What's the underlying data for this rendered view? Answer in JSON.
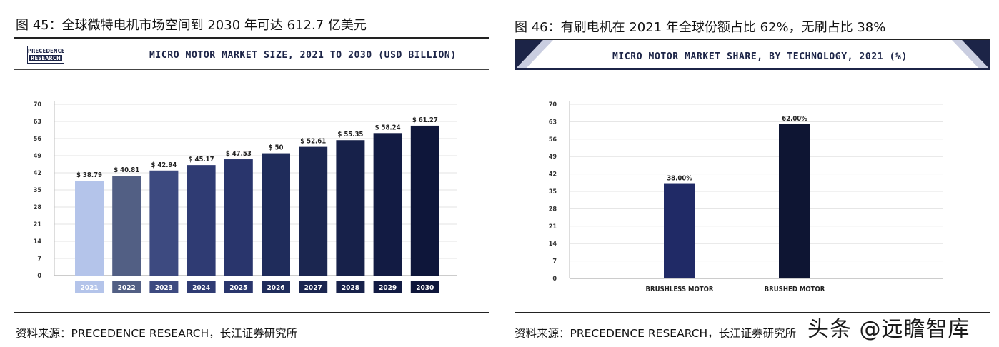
{
  "left_figure": {
    "title": "图 45：全球微特电机市场空间到 2030 年可达 612.7 亿美元",
    "logo_line1": "PRECEDENCE",
    "logo_line2": "RESEARCH",
    "chart_header": "MICRO MOTOR MARKET SIZE, 2021 TO 2030 (USD BILLION)",
    "source": "资料来源：PRECEDENCE RESEARCH，长江证券研究所"
  },
  "right_figure": {
    "title": "图 46：有刷电机在 2021 年全球份额占比 62%，无刷占比 38%",
    "chart_header": "MICRO MOTOR MARKET SHARE, BY TECHNOLOGY, 2021 (%)",
    "source": "资料来源：PRECEDENCE RESEARCH，长江证券研究所"
  },
  "watermark": "头条 @远瞻智库",
  "chart_data": [
    {
      "type": "bar",
      "title": "MICRO MOTOR MARKET SIZE, 2021 TO 2030 (USD BILLION)",
      "categories": [
        "2021",
        "2022",
        "2023",
        "2024",
        "2025",
        "2026",
        "2027",
        "2028",
        "2029",
        "2030"
      ],
      "values": [
        38.79,
        40.81,
        42.94,
        45.17,
        47.53,
        50,
        52.61,
        55.35,
        58.24,
        61.27
      ],
      "data_labels": [
        "$ 38.79",
        "$ 40.81",
        "$ 42.94",
        "$ 45.17",
        "$ 47.53",
        "$ 50",
        "$ 52.61",
        "$ 55.35",
        "$ 58.24",
        "$ 61.27"
      ],
      "colors": [
        "#b4c4ea",
        "#525f84",
        "#3d4a80",
        "#2f3b73",
        "#29356c",
        "#1f2c5b",
        "#1b2650",
        "#17214a",
        "#121b43",
        "#0e163a"
      ],
      "yticks": [
        0,
        7,
        14,
        21,
        28,
        35,
        42,
        49,
        56,
        63,
        70
      ],
      "ylim": [
        0,
        70
      ],
      "grid": true,
      "xlabel": "",
      "ylabel": ""
    },
    {
      "type": "bar",
      "title": "MICRO MOTOR MARKET SHARE, BY TECHNOLOGY, 2021 (%)",
      "categories": [
        "BRUSHLESS MOTOR",
        "BRUSHED MOTOR"
      ],
      "values": [
        38.0,
        62.0
      ],
      "data_labels": [
        "38.00%",
        "62.00%"
      ],
      "colors": [
        "#202a66",
        "#0e1533"
      ],
      "yticks": [
        0,
        7,
        14,
        21,
        28,
        35,
        42,
        49,
        56,
        63,
        70
      ],
      "ylim": [
        0,
        70
      ],
      "grid": true,
      "xlabel": "",
      "ylabel": ""
    }
  ]
}
